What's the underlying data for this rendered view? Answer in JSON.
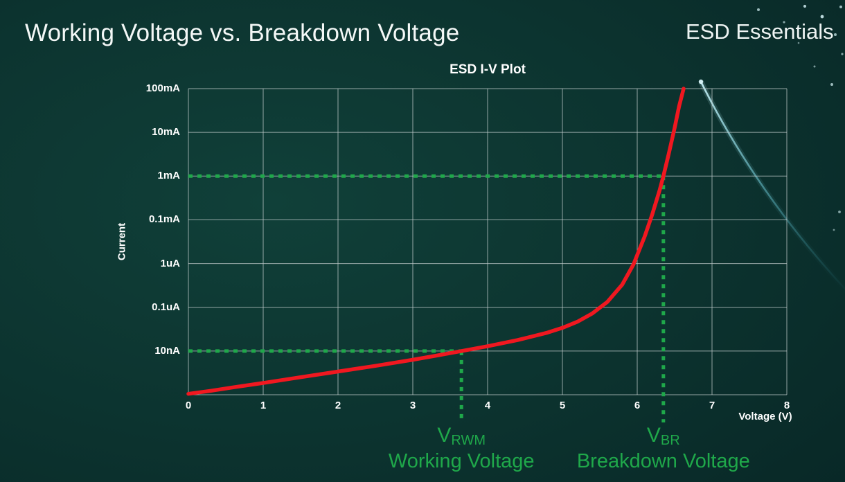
{
  "slide": {
    "title": "Working Voltage vs. Breakdown Voltage",
    "brand": "ESD Essentials"
  },
  "chart_data": {
    "type": "line",
    "title": "ESD I-V Plot",
    "xlabel": "Voltage (V)",
    "ylabel": "Current",
    "xlim": [
      0,
      8
    ],
    "x_ticks": [
      0,
      1,
      2,
      3,
      4,
      5,
      6,
      7,
      8
    ],
    "y_tick_labels": [
      "100mA",
      "10mA",
      "1mA",
      "0.1mA",
      "1uA",
      "0.1uA",
      "10nA"
    ],
    "y_scale_note": "stylized log axis; curve points use grid rows above the bottom axis (10nA = row 1, 1mA = row 5, 100mA = row 7)",
    "grid": true,
    "legend": "none",
    "series": [
      {
        "name": "I-V curve",
        "color": "#f01820",
        "points": [
          [
            0,
            0.02
          ],
          [
            0.3,
            0.09
          ],
          [
            0.6,
            0.17
          ],
          [
            1,
            0.27
          ],
          [
            1.5,
            0.4
          ],
          [
            2,
            0.53
          ],
          [
            2.5,
            0.66
          ],
          [
            3,
            0.8
          ],
          [
            3.3,
            0.89
          ],
          [
            3.65,
            1
          ],
          [
            4,
            1.11
          ],
          [
            4.4,
            1.25
          ],
          [
            4.8,
            1.42
          ],
          [
            5,
            1.53
          ],
          [
            5.2,
            1.67
          ],
          [
            5.4,
            1.86
          ],
          [
            5.6,
            2.12
          ],
          [
            5.8,
            2.52
          ],
          [
            5.95,
            2.98
          ],
          [
            6.1,
            3.62
          ],
          [
            6.2,
            4.12
          ],
          [
            6.3,
            4.68
          ],
          [
            6.35,
            5
          ],
          [
            6.42,
            5.5
          ],
          [
            6.5,
            6.1
          ],
          [
            6.56,
            6.6
          ],
          [
            6.62,
            7.1
          ]
        ]
      }
    ],
    "annotations": {
      "color": "#1fa84a",
      "markers": [
        {
          "symbol": "V",
          "sub": "RWM",
          "caption": "Working Voltage",
          "voltage": 3.65,
          "current_level": "10nA"
        },
        {
          "symbol": "V",
          "sub": "BR",
          "caption": "Breakdown Voltage",
          "voltage": 6.35,
          "current_level": "1mA"
        }
      ]
    }
  }
}
